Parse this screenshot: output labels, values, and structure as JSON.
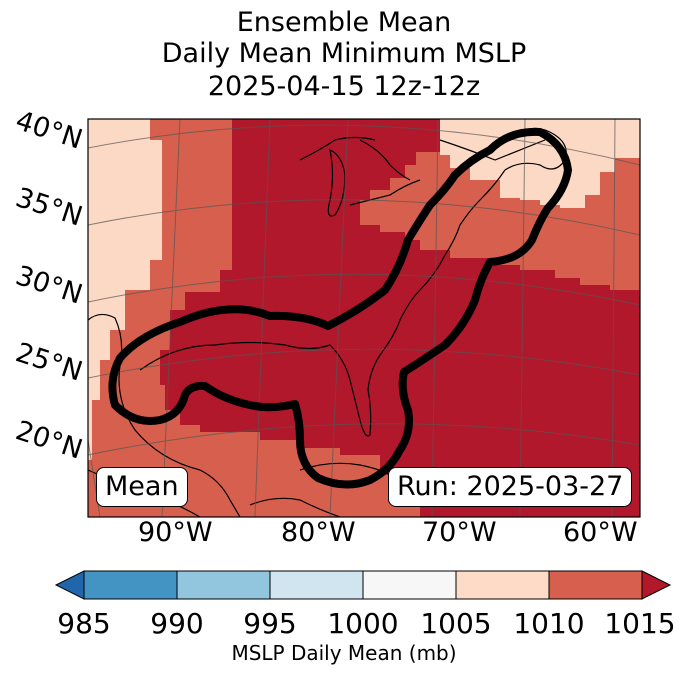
{
  "title": {
    "line1": "Ensemble Mean",
    "line2": "Daily Mean Minimum MSLP",
    "line3": "2025-04-15 12z-12z"
  },
  "map": {
    "lat_labels": [
      "40°N",
      "35°N",
      "30°N",
      "25°N",
      "20°N"
    ],
    "lon_labels": [
      "90°W",
      "80°W",
      "70°W",
      "60°W"
    ],
    "mean_box": "Mean",
    "run_box": "Run: 2025-03-27",
    "fill_colors": {
      "light": "#fcd9c4",
      "mid": "#d6604d",
      "dark": "#b2182b",
      "land": "#f4e6dc",
      "contour": "#000000"
    }
  },
  "colorbar": {
    "ticks": [
      "985",
      "990",
      "995",
      "1000",
      "1005",
      "1010",
      "1015"
    ],
    "label": "MSLP Daily Mean (mb)",
    "colors": [
      "#2166ac",
      "#4393c3",
      "#92c5de",
      "#d1e5f0",
      "#f7f7f7",
      "#fddbc7",
      "#d6604d",
      "#b2182b"
    ]
  }
}
